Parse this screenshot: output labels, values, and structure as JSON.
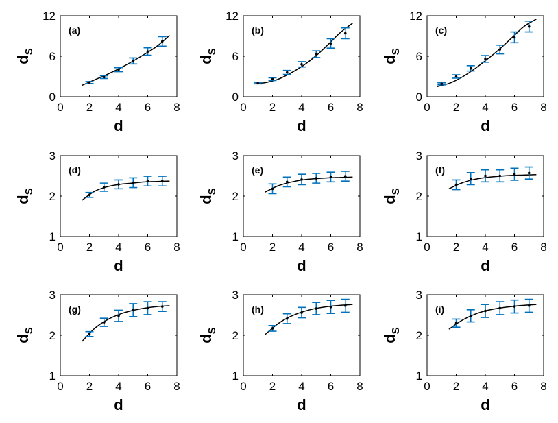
{
  "colors": {
    "errorbar": "#0072BD",
    "fit": "#000000"
  },
  "chart_data": [
    {
      "type": "scatter",
      "panel": "(a)",
      "xlabel": "d",
      "ylabel": "d",
      "ylabel_subscript": "S",
      "xlim": [
        0,
        8
      ],
      "ylim": [
        0,
        12
      ],
      "xticks": [
        "0",
        "2",
        "4",
        "6",
        "8"
      ],
      "yticks": [
        "0",
        "6",
        "12"
      ],
      "fit_x": [
        1.5,
        7.5
      ],
      "fit_y": [
        1.7,
        2.5,
        3.3,
        4.2,
        5.2,
        6.3,
        7.5,
        9.1
      ],
      "points": {
        "x": [
          2,
          3,
          4,
          5,
          6,
          7
        ],
        "y": [
          2.1,
          2.9,
          4.0,
          5.3,
          6.7,
          8.2
        ],
        "err": [
          0.15,
          0.2,
          0.3,
          0.45,
          0.55,
          0.7
        ]
      }
    },
    {
      "type": "scatter",
      "panel": "(b)",
      "xlabel": "d",
      "ylabel": "d",
      "ylabel_subscript": "S",
      "xlim": [
        0,
        8
      ],
      "ylim": [
        0,
        12
      ],
      "xticks": [
        "0",
        "2",
        "4",
        "6",
        "8"
      ],
      "yticks": [
        "0",
        "6",
        "12"
      ],
      "fit_x": [
        0.7,
        7.5
      ],
      "fit_y": [
        1.9,
        2.1,
        2.6,
        3.5,
        4.6,
        6.0,
        7.7,
        9.5,
        10.9
      ],
      "points": {
        "x": [
          1,
          2,
          3,
          4,
          5,
          6,
          7
        ],
        "y": [
          2.0,
          2.6,
          3.6,
          4.8,
          6.3,
          7.9,
          9.4
        ],
        "err": [
          0.1,
          0.2,
          0.3,
          0.4,
          0.5,
          0.7,
          0.8
        ]
      }
    },
    {
      "type": "scatter",
      "panel": "(c)",
      "xlabel": "d",
      "ylabel": "d",
      "ylabel_subscript": "S",
      "xlim": [
        0,
        8
      ],
      "ylim": [
        0,
        12
      ],
      "xticks": [
        "0",
        "2",
        "4",
        "6",
        "8"
      ],
      "yticks": [
        "0",
        "6",
        "12"
      ],
      "fit_x": [
        0.7,
        7.5
      ],
      "fit_y": [
        1.5,
        2.0,
        2.9,
        4.1,
        5.5,
        7.0,
        8.7,
        10.4,
        11.5
      ],
      "points": {
        "x": [
          1,
          2,
          3,
          4,
          5,
          6,
          7
        ],
        "y": [
          1.9,
          3.0,
          4.2,
          5.6,
          7.0,
          8.8,
          10.4
        ],
        "err": [
          0.15,
          0.25,
          0.4,
          0.5,
          0.65,
          0.8,
          0.8
        ]
      }
    },
    {
      "type": "scatter",
      "panel": "(d)",
      "xlabel": "d",
      "ylabel": "d",
      "ylabel_subscript": "S",
      "xlim": [
        0,
        8
      ],
      "ylim": [
        1,
        3
      ],
      "xticks": [
        "0",
        "2",
        "4",
        "6",
        "8"
      ],
      "yticks": [
        "1",
        "2",
        "3"
      ],
      "fit_x": [
        1.5,
        7.5
      ],
      "fit_y": [
        1.9,
        2.12,
        2.23,
        2.29,
        2.32,
        2.35,
        2.36,
        2.37
      ],
      "points": {
        "x": [
          2,
          3,
          4,
          5,
          6,
          7
        ],
        "y": [
          2.03,
          2.22,
          2.29,
          2.33,
          2.37,
          2.37
        ],
        "err": [
          0.06,
          0.1,
          0.11,
          0.12,
          0.12,
          0.12
        ]
      }
    },
    {
      "type": "scatter",
      "panel": "(e)",
      "xlabel": "d",
      "ylabel": "d",
      "ylabel_subscript": "S",
      "xlim": [
        0,
        8
      ],
      "ylim": [
        1,
        3
      ],
      "xticks": [
        "0",
        "2",
        "4",
        "6",
        "8"
      ],
      "yticks": [
        "1",
        "2",
        "3"
      ],
      "fit_x": [
        1.5,
        7.5
      ],
      "fit_y": [
        2.1,
        2.25,
        2.34,
        2.4,
        2.43,
        2.45,
        2.46,
        2.47
      ],
      "points": {
        "x": [
          2,
          3,
          4,
          5,
          6,
          7
        ],
        "y": [
          2.18,
          2.35,
          2.41,
          2.44,
          2.47,
          2.49
        ],
        "err": [
          0.12,
          0.12,
          0.13,
          0.12,
          0.12,
          0.12
        ]
      }
    },
    {
      "type": "scatter",
      "panel": "(f)",
      "xlabel": "d",
      "ylabel": "d",
      "ylabel_subscript": "S",
      "xlim": [
        0,
        8
      ],
      "ylim": [
        1,
        3
      ],
      "xticks": [
        "0",
        "2",
        "4",
        "6",
        "8"
      ],
      "yticks": [
        "1",
        "2",
        "3"
      ],
      "fit_x": [
        1.5,
        7.5
      ],
      "fit_y": [
        2.18,
        2.32,
        2.41,
        2.46,
        2.49,
        2.51,
        2.52,
        2.53
      ],
      "points": {
        "x": [
          2,
          3,
          4,
          5,
          6,
          7
        ],
        "y": [
          2.28,
          2.43,
          2.5,
          2.5,
          2.54,
          2.57
        ],
        "err": [
          0.12,
          0.15,
          0.15,
          0.15,
          0.15,
          0.15
        ]
      }
    },
    {
      "type": "scatter",
      "panel": "(g)",
      "xlabel": "d",
      "ylabel": "d",
      "ylabel_subscript": "S",
      "xlim": [
        0,
        8
      ],
      "ylim": [
        1,
        3
      ],
      "xticks": [
        "0",
        "2",
        "4",
        "6",
        "8"
      ],
      "yticks": [
        "1",
        "2",
        "3"
      ],
      "fit_x": [
        1.5,
        7.5
      ],
      "fit_y": [
        1.85,
        2.17,
        2.38,
        2.52,
        2.61,
        2.67,
        2.71,
        2.73
      ],
      "points": {
        "x": [
          2,
          3,
          4,
          5,
          6,
          7
        ],
        "y": [
          2.03,
          2.32,
          2.48,
          2.62,
          2.67,
          2.71
        ],
        "err": [
          0.06,
          0.1,
          0.14,
          0.16,
          0.16,
          0.12
        ]
      }
    },
    {
      "type": "scatter",
      "panel": "(h)",
      "xlabel": "d",
      "ylabel": "d",
      "ylabel_subscript": "S",
      "xlim": [
        0,
        8
      ],
      "ylim": [
        1,
        3
      ],
      "xticks": [
        "0",
        "2",
        "4",
        "6",
        "8"
      ],
      "yticks": [
        "1",
        "2",
        "3"
      ],
      "fit_x": [
        1.5,
        7.5
      ],
      "fit_y": [
        2.02,
        2.28,
        2.46,
        2.58,
        2.66,
        2.71,
        2.74,
        2.76
      ],
      "points": {
        "x": [
          2,
          3,
          4,
          5,
          6,
          7
        ],
        "y": [
          2.17,
          2.41,
          2.56,
          2.66,
          2.7,
          2.73
        ],
        "err": [
          0.07,
          0.12,
          0.13,
          0.15,
          0.16,
          0.16
        ]
      }
    },
    {
      "type": "scatter",
      "panel": "(i)",
      "xlabel": "d",
      "ylabel": "d",
      "ylabel_subscript": "S",
      "xlim": [
        0,
        8
      ],
      "ylim": [
        1,
        3
      ],
      "xticks": [
        "0",
        "2",
        "4",
        "6",
        "8"
      ],
      "yticks": [
        "1",
        "2",
        "3"
      ],
      "fit_x": [
        1.5,
        7.5
      ],
      "fit_y": [
        2.15,
        2.36,
        2.51,
        2.61,
        2.67,
        2.71,
        2.74,
        2.76
      ],
      "points": {
        "x": [
          2,
          3,
          4,
          5,
          6,
          7
        ],
        "y": [
          2.3,
          2.48,
          2.6,
          2.67,
          2.71,
          2.73
        ],
        "err": [
          0.1,
          0.15,
          0.16,
          0.16,
          0.16,
          0.16
        ]
      }
    }
  ]
}
